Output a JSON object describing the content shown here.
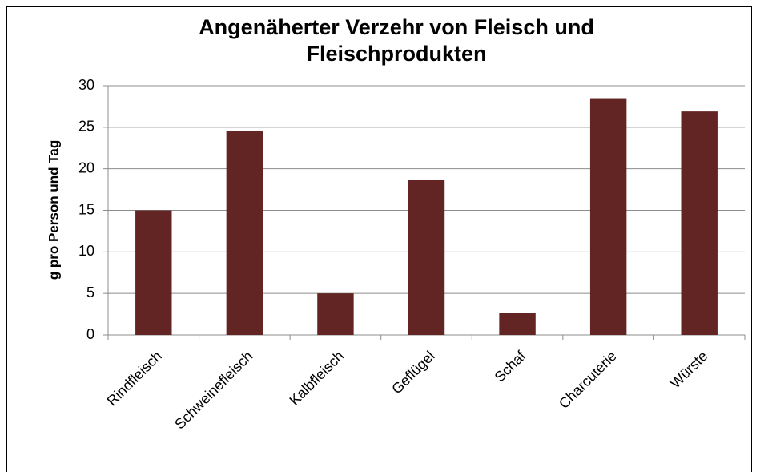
{
  "chart_data": {
    "type": "bar",
    "title": "Angenäherter Verzehr von Fleisch und Fleischprodukten",
    "y_label": "g pro Person und Tag",
    "categories": [
      "Rindfleisch",
      "Schweinefleisch",
      "Kalbfleisch",
      "Geflügel",
      "Schaf",
      "Charcuterie",
      "Würste"
    ],
    "values": [
      15,
      24.6,
      5,
      18.7,
      2.7,
      28.5,
      26.9
    ],
    "color": "#632523",
    "ylim": [
      0,
      30
    ],
    "yticks": [
      0,
      5,
      10,
      15,
      20,
      25,
      30
    ],
    "grid": true
  }
}
